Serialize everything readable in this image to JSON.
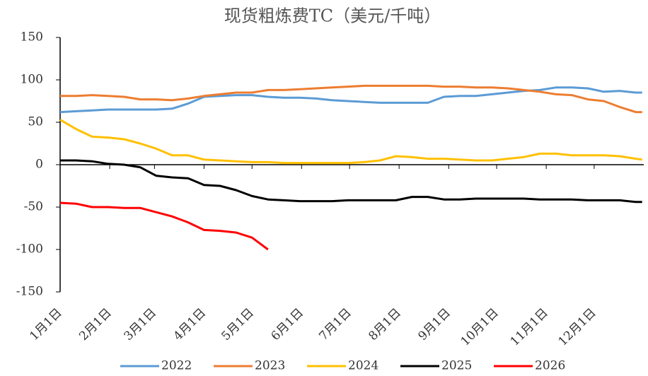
{
  "chart_data": {
    "type": "line",
    "title": "现货粗炼费TC（美元/千吨）",
    "x": [
      0,
      10,
      20,
      30,
      40,
      50,
      60,
      70,
      80,
      90,
      100,
      110,
      120,
      130,
      140,
      150,
      160,
      170,
      180,
      190,
      200,
      210,
      220,
      230,
      240,
      250,
      260,
      270,
      280,
      290,
      300,
      310,
      320,
      330,
      340,
      350,
      360,
      364
    ],
    "xlim": [
      0,
      365
    ],
    "xticks": [
      {
        "value": 0,
        "label": "1月1日"
      },
      {
        "value": 31,
        "label": "2月1日"
      },
      {
        "value": 59,
        "label": "3月1日"
      },
      {
        "value": 90,
        "label": "4月1日"
      },
      {
        "value": 120,
        "label": "5月1日"
      },
      {
        "value": 151,
        "label": "6月1日"
      },
      {
        "value": 181,
        "label": "7月1日"
      },
      {
        "value": 212,
        "label": "8月1日"
      },
      {
        "value": 243,
        "label": "9月1日"
      },
      {
        "value": 273,
        "label": "10月1日"
      },
      {
        "value": 304,
        "label": "11月1日"
      },
      {
        "value": 334,
        "label": "12月1日"
      }
    ],
    "ylim": [
      -150,
      150
    ],
    "yticks": [
      -150,
      -100,
      -50,
      0,
      50,
      100,
      150
    ],
    "series": [
      {
        "name": "2022",
        "color": "#5b9bd5",
        "values": [
          62,
          63,
          64,
          65,
          65,
          65,
          65,
          66,
          72,
          80,
          81,
          82,
          82,
          80,
          79,
          79,
          78,
          76,
          75,
          74,
          73,
          73,
          73,
          73,
          80,
          81,
          81,
          83,
          85,
          87,
          88,
          91,
          91,
          90,
          86,
          87,
          85,
          85
        ]
      },
      {
        "name": "2023",
        "color": "#ed7d31",
        "values": [
          81,
          81,
          82,
          81,
          80,
          77,
          77,
          76,
          78,
          81,
          83,
          85,
          85,
          88,
          88,
          89,
          90,
          91,
          92,
          93,
          93,
          93,
          93,
          93,
          92,
          92,
          91,
          91,
          90,
          88,
          86,
          83,
          82,
          77,
          75,
          68,
          62,
          62
        ]
      },
      {
        "name": "2024",
        "color": "#ffc000",
        "values": [
          53,
          42,
          33,
          32,
          30,
          25,
          19,
          11,
          11,
          6,
          5,
          4,
          3,
          3,
          2,
          2,
          2,
          2,
          2,
          3,
          5,
          10,
          9,
          7,
          7,
          6,
          5,
          5,
          7,
          9,
          13,
          13,
          11,
          11,
          11,
          10,
          7,
          6
        ]
      },
      {
        "name": "2025",
        "color": "#000000",
        "values": [
          5,
          5,
          4,
          1,
          0,
          -3,
          -13,
          -15,
          -16,
          -24,
          -25,
          -30,
          -37,
          -41,
          -42,
          -43,
          -43,
          -43,
          -42,
          -42,
          -42,
          -42,
          -38,
          -38,
          -41,
          -41,
          -40,
          -40,
          -40,
          -40,
          -41,
          -41,
          -41,
          -42,
          -42,
          -42,
          -44,
          -44
        ]
      },
      {
        "name": "2026",
        "color": "#ff0000",
        "values": [
          -45,
          -46,
          -50,
          -50,
          -51,
          -51,
          -56,
          -61,
          -68,
          -77,
          -78,
          -80,
          -86,
          -100,
          null,
          null,
          null,
          null,
          null,
          null,
          null,
          null,
          null,
          null,
          null,
          null,
          null,
          null,
          null,
          null,
          null,
          null,
          null,
          null,
          null,
          null,
          null,
          null
        ]
      }
    ]
  }
}
